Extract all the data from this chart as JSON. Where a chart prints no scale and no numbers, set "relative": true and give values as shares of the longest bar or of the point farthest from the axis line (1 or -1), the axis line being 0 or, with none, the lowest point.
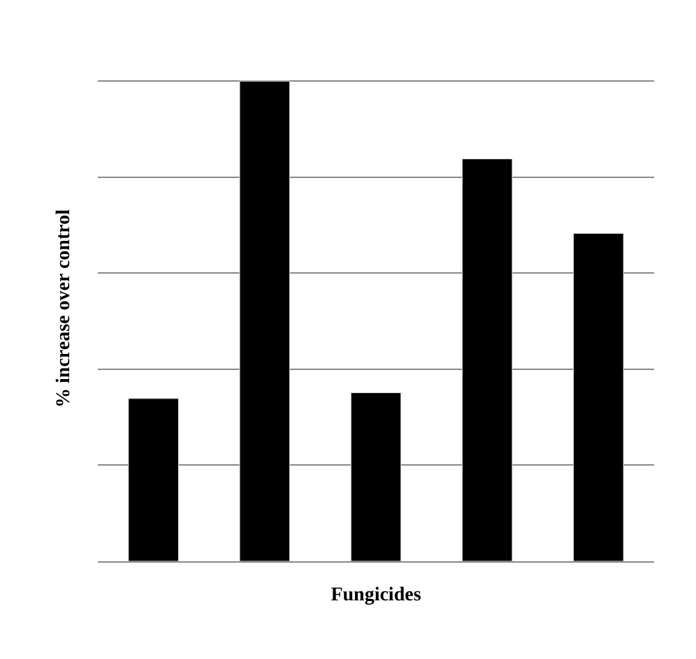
{
  "chart_data": {
    "type": "bar",
    "relative": true,
    "xlabel": "Fungicides",
    "ylabel": "% increase over control",
    "categories": [
      null,
      null,
      null,
      null,
      null
    ],
    "values": [
      0.339,
      1,
      0.351,
      0.838,
      0.683
    ],
    "color": "#000000",
    "grid": "y",
    "legend": false
  }
}
